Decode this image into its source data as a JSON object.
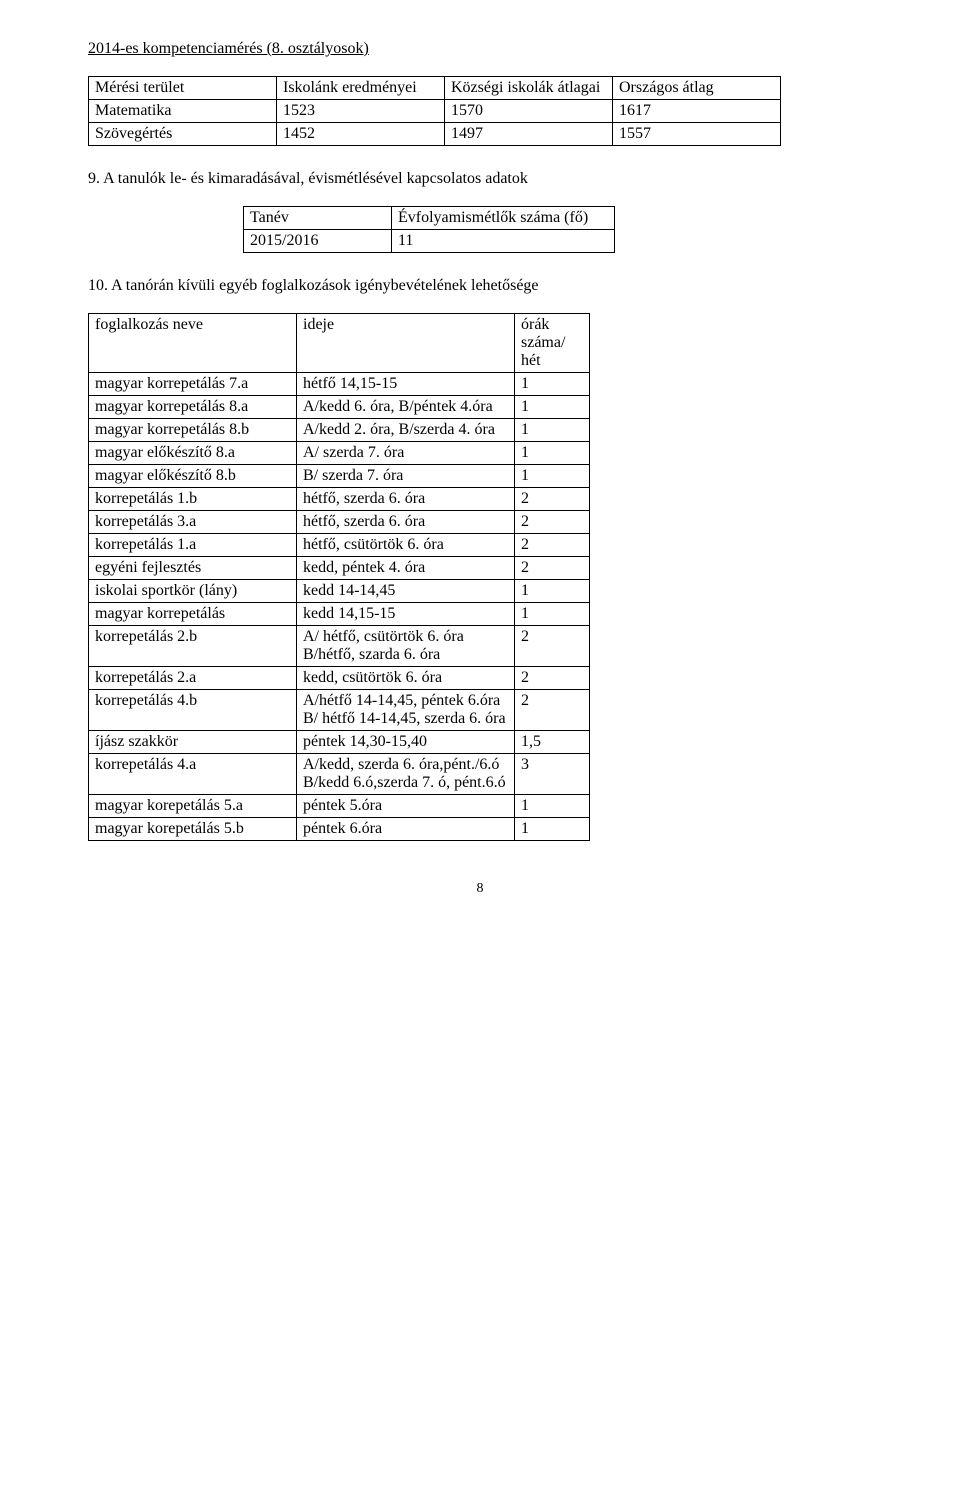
{
  "title": "2014-es kompetenciamérés (8. osztályosok)",
  "table1": {
    "headers": [
      "Mérési terület",
      "Iskolánk eredményei",
      "Községi iskolák átlagai",
      "Országos átlag"
    ],
    "rows": [
      [
        "Matematika",
        "1523",
        "1570",
        "1617"
      ],
      [
        "Szövegértés",
        "1452",
        "1497",
        "1557"
      ]
    ]
  },
  "section9": "9. A tanulók le- és kimaradásával, évismétlésével kapcsolatos adatok",
  "table2": {
    "headers": [
      "Tanév",
      "Évfolyamismétlők száma (fő)"
    ],
    "rows": [
      [
        "2015/2016",
        "11"
      ]
    ]
  },
  "section10": "10. A tanórán kívüli egyéb foglalkozások igénybevételének lehetősége",
  "table3": {
    "headers": [
      "foglalkozás neve",
      "ideje",
      "órák száma/ hét"
    ],
    "rows": [
      [
        "magyar korrepetálás 7.a",
        "hétfő 14,15-15",
        "1"
      ],
      [
        "magyar korrepetálás 8.a",
        "A/kedd 6. óra, B/péntek 4.óra",
        "1"
      ],
      [
        "magyar korrepetálás 8.b",
        "A/kedd 2. óra, B/szerda 4. óra",
        "1"
      ],
      [
        "magyar előkészítő 8.a",
        "A/ szerda 7. óra",
        "1"
      ],
      [
        "magyar előkészítő 8.b",
        "B/ szerda 7. óra",
        "1"
      ],
      [
        "korrepetálás 1.b",
        "hétfő, szerda 6. óra",
        "2"
      ],
      [
        "korrepetálás 3.a",
        "hétfő, szerda 6. óra",
        "2"
      ],
      [
        "korrepetálás 1.a",
        "hétfő, csütörtök 6. óra",
        "2"
      ],
      [
        "egyéni fejlesztés",
        "kedd, péntek 4. óra",
        "2"
      ],
      [
        "iskolai sportkör (lány)",
        "kedd 14-14,45",
        "1"
      ],
      [
        "magyar korrepetálás",
        "kedd 14,15-15",
        "1"
      ],
      [
        "korrepetálás 2.b",
        "A/ hétfő, csütörtök 6. óra B/hétfő, szarda 6. óra",
        "2"
      ],
      [
        "korrepetálás 2.a",
        "kedd, csütörtök 6. óra",
        "2"
      ],
      [
        "korrepetálás 4.b",
        "A/hétfő 14-14,45, péntek 6.óra\nB/ hétfő 14-14,45, szerda 6. óra",
        "2"
      ],
      [
        "íjász szakkör",
        "péntek  14,30-15,40",
        "1,5"
      ],
      [
        "korrepetálás 4.a",
        "A/kedd, szerda 6. óra,pént./6.ó\nB/kedd 6.ó,szerda 7. ó, pént.6.ó",
        "3"
      ],
      [
        "magyar korepetálás 5.a",
        "péntek 5.óra",
        "1"
      ],
      [
        "magyar korepetálás 5.b",
        "péntek 6.óra",
        "1"
      ]
    ]
  },
  "pageNumber": "8"
}
